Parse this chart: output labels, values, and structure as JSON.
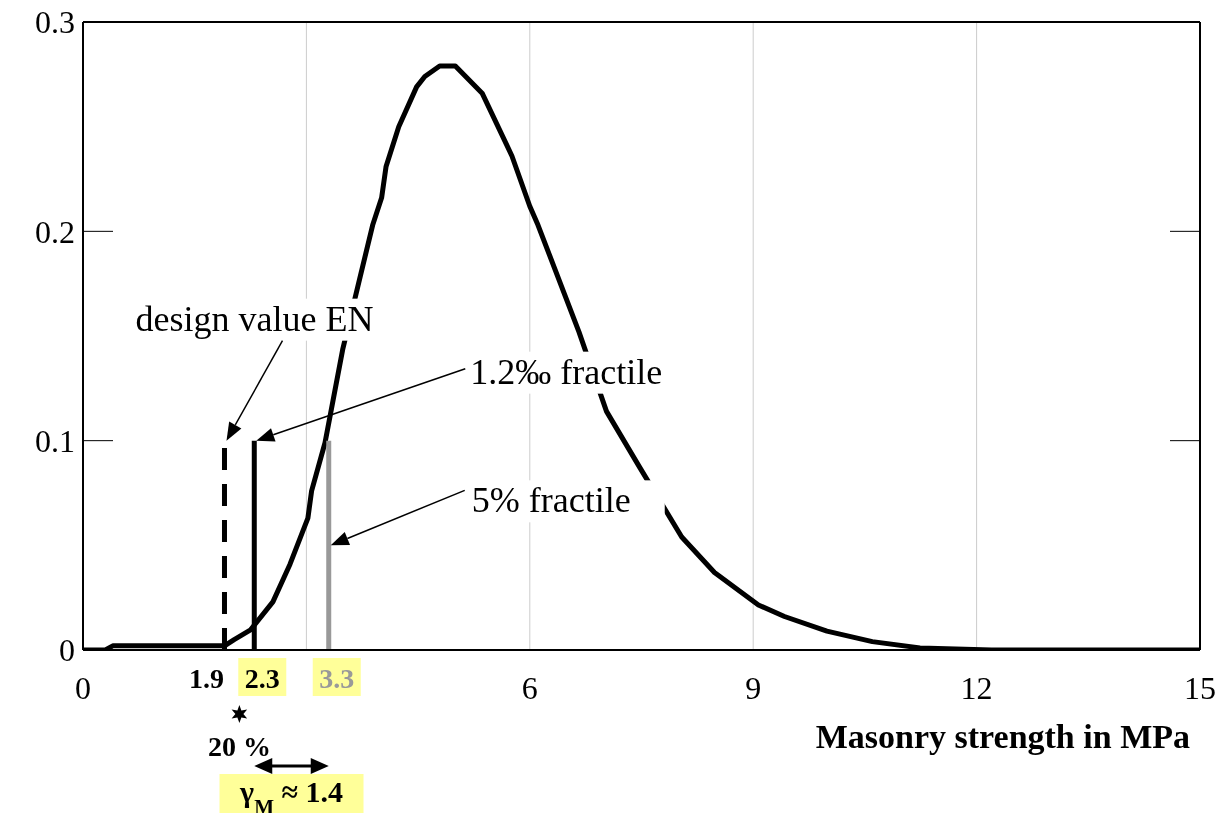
{
  "chart_data": {
    "type": "line",
    "xlabel": "Masonry strength in MPa",
    "xlim": [
      0,
      15
    ],
    "xticks": [
      0,
      {
        "value": 3,
        "label": null
      },
      6,
      9,
      12,
      15
    ],
    "ylim": [
      0,
      0.3
    ],
    "yticks": [
      0,
      0.1,
      0.2,
      0.3
    ],
    "grid": "x",
    "marker": "none",
    "series": [
      {
        "color": "#000000",
        "line_style": "solid",
        "x": [
          0,
          0.3,
          0.4,
          1.9,
          2.03,
          2.25,
          2.55,
          2.78,
          3.02,
          3.07,
          3.25,
          3.49,
          3.72,
          3.89,
          4.01,
          4.07,
          4.24,
          4.48,
          4.59,
          4.79,
          5.0,
          5.36,
          5.76,
          6.0,
          6.11,
          6.66,
          7.03,
          7.48,
          8.04,
          8.48,
          9.07,
          9.42,
          9.99,
          10.6,
          11.24,
          12.2,
          15
        ],
        "values": [
          0,
          0,
          0.002,
          0.002,
          0.005,
          0.0096,
          0.023,
          0.041,
          0.063,
          0.076,
          0.099,
          0.144,
          0.178,
          0.203,
          0.216,
          0.231,
          0.25,
          0.269,
          0.274,
          0.279,
          0.279,
          0.266,
          0.236,
          0.212,
          0.203,
          0.152,
          0.114,
          0.087,
          0.054,
          0.037,
          0.0215,
          0.016,
          0.009,
          0.004,
          0.001,
          0,
          0
        ]
      },
      {
        "color": "#000000",
        "line_style": "dashed",
        "x": [
          1.9,
          1.9
        ],
        "values": [
          0,
          0.1
        ]
      },
      {
        "color": "#000000",
        "line_style": "solid",
        "x": [
          2.3,
          2.3
        ],
        "values": [
          0,
          0.1
        ]
      },
      {
        "color": "#999999",
        "line_style": "solid",
        "x": [
          3.3,
          3.3
        ],
        "values": [
          0,
          0.1
        ]
      }
    ],
    "annotations": [
      "design value EN",
      "1.2‰ fractile",
      "5% fractile",
      {
        "text": "1.9",
        "x": 1.9,
        "y": 0
      },
      {
        "text": "2.3",
        "x": 2.3,
        "y": 0
      },
      {
        "text": "3.3",
        "x": 3.3,
        "y": 0
      },
      "20 %",
      "γ$_{M}$ ≈ 1.4"
    ]
  }
}
